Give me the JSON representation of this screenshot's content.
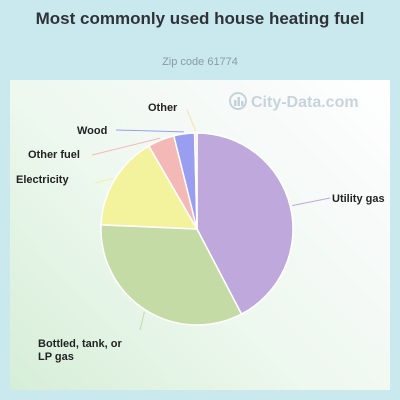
{
  "header": {
    "title": "Most commonly used house heating fuel",
    "subtitle": "Zip code 61774"
  },
  "watermark": {
    "text": "City-Data.com",
    "icon": "city-data-logo-icon"
  },
  "chart_data": {
    "type": "pie",
    "title": "Most commonly used house heating fuel",
    "subtitle": "Zip code 61774",
    "legend": "none (callout labels)",
    "slices": [
      {
        "label": "Utility gas",
        "value": 42.5,
        "color": "#bfa9dc"
      },
      {
        "label": "Bottled, tank, or LP gas",
        "value": 33.5,
        "color": "#c5dba6"
      },
      {
        "label": "Electricity",
        "value": 16.0,
        "color": "#f3f29d"
      },
      {
        "label": "Other fuel",
        "value": 4.5,
        "color": "#f4b8b6"
      },
      {
        "label": "Wood",
        "value": 3.5,
        "color": "#9a9ef0"
      },
      {
        "label": "Other",
        "value": 0.4,
        "color": "#f6e2b0"
      }
    ]
  }
}
